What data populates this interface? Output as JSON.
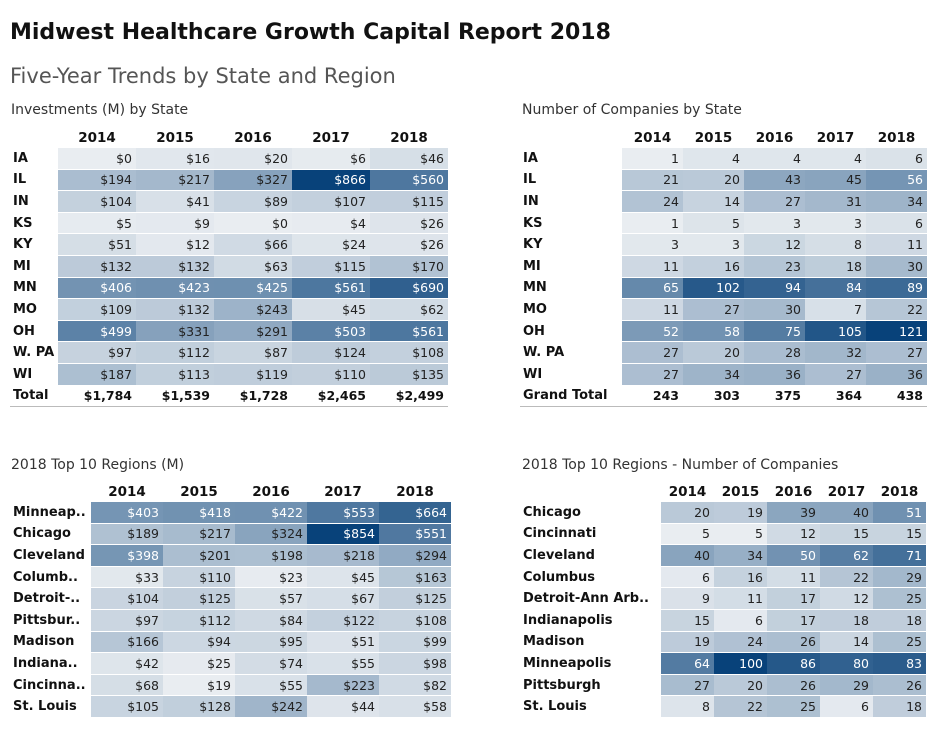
{
  "header": {
    "title": "Midwest Healthcare Growth Capital Report 2018",
    "subtitle": "Five-Year Trends by State and Region"
  },
  "colors": {
    "low": "#e9edf1",
    "high": "#08427a",
    "light_text": "#ffffff",
    "dark_text": "#222222"
  },
  "chart_data": [
    {
      "type": "heatmap",
      "id": "inv-state",
      "title": "Investments (M) by State",
      "value_prefix": "$",
      "columns": [
        "2014",
        "2015",
        "2016",
        "2017",
        "2018"
      ],
      "rows": [
        {
          "label": "IA",
          "values": [
            0,
            16,
            20,
            6,
            46
          ]
        },
        {
          "label": "IL",
          "values": [
            194,
            217,
            327,
            866,
            560
          ]
        },
        {
          "label": "IN",
          "values": [
            104,
            41,
            89,
            107,
            115
          ]
        },
        {
          "label": "KS",
          "values": [
            5,
            9,
            0,
            4,
            26
          ]
        },
        {
          "label": "KY",
          "values": [
            51,
            12,
            66,
            24,
            26
          ]
        },
        {
          "label": "MI",
          "values": [
            132,
            132,
            63,
            115,
            170
          ]
        },
        {
          "label": "MN",
          "values": [
            406,
            423,
            425,
            561,
            690
          ]
        },
        {
          "label": "MO",
          "values": [
            109,
            132,
            243,
            45,
            62
          ]
        },
        {
          "label": "OH",
          "values": [
            499,
            331,
            291,
            503,
            561
          ]
        },
        {
          "label": "W. PA",
          "values": [
            97,
            112,
            87,
            124,
            108
          ]
        },
        {
          "label": "WI",
          "values": [
            187,
            113,
            119,
            110,
            135
          ]
        }
      ],
      "total": {
        "label": "Total",
        "values": [
          "$1,784",
          "$1,539",
          "$1,728",
          "$2,465",
          "$2,499"
        ]
      }
    },
    {
      "type": "heatmap",
      "id": "cos-state",
      "title": "Number of Companies by State",
      "value_prefix": "",
      "columns": [
        "2014",
        "2015",
        "2016",
        "2017",
        "2018"
      ],
      "rows": [
        {
          "label": "IA",
          "values": [
            1,
            4,
            4,
            4,
            6
          ]
        },
        {
          "label": "IL",
          "values": [
            21,
            20,
            43,
            45,
            56
          ]
        },
        {
          "label": "IN",
          "values": [
            24,
            14,
            27,
            31,
            34
          ]
        },
        {
          "label": "KS",
          "values": [
            1,
            5,
            3,
            3,
            6
          ]
        },
        {
          "label": "KY",
          "values": [
            3,
            3,
            12,
            8,
            11
          ]
        },
        {
          "label": "MI",
          "values": [
            11,
            16,
            23,
            18,
            30
          ]
        },
        {
          "label": "MN",
          "values": [
            65,
            102,
            94,
            84,
            89
          ]
        },
        {
          "label": "MO",
          "values": [
            11,
            27,
            30,
            7,
            22
          ]
        },
        {
          "label": "OH",
          "values": [
            52,
            58,
            75,
            105,
            121
          ]
        },
        {
          "label": "W. PA",
          "values": [
            27,
            20,
            28,
            32,
            27
          ]
        },
        {
          "label": "WI",
          "values": [
            27,
            34,
            36,
            27,
            36
          ]
        }
      ],
      "total": {
        "label": "Grand Total",
        "values": [
          "243",
          "303",
          "375",
          "364",
          "438"
        ]
      }
    },
    {
      "type": "heatmap",
      "id": "inv-region",
      "title": "2018 Top 10 Regions (M)",
      "value_prefix": "$",
      "columns": [
        "2014",
        "2015",
        "2016",
        "2017",
        "2018"
      ],
      "rows": [
        {
          "label": "Minneap..",
          "values": [
            403,
            418,
            422,
            553,
            664
          ]
        },
        {
          "label": "Chicago",
          "values": [
            189,
            217,
            324,
            854,
            551
          ]
        },
        {
          "label": "Cleveland",
          "values": [
            398,
            201,
            198,
            218,
            294
          ]
        },
        {
          "label": "Columb..",
          "values": [
            33,
            110,
            23,
            45,
            163
          ]
        },
        {
          "label": "Detroit-..",
          "values": [
            104,
            125,
            57,
            67,
            125
          ]
        },
        {
          "label": "Pittsbur..",
          "values": [
            97,
            112,
            84,
            122,
            108
          ]
        },
        {
          "label": "Madison",
          "values": [
            166,
            94,
            95,
            51,
            99
          ]
        },
        {
          "label": "Indiana..",
          "values": [
            42,
            25,
            74,
            55,
            98
          ]
        },
        {
          "label": "Cincinna..",
          "values": [
            68,
            19,
            55,
            223,
            82
          ]
        },
        {
          "label": "St. Louis",
          "values": [
            105,
            128,
            242,
            44,
            58
          ]
        }
      ]
    },
    {
      "type": "heatmap",
      "id": "cos-region",
      "title": "2018 Top 10 Regions - Number of Companies",
      "value_prefix": "",
      "columns": [
        "2014",
        "2015",
        "2016",
        "2017",
        "2018"
      ],
      "rows": [
        {
          "label": "Chicago",
          "values": [
            20,
            19,
            39,
            40,
            51
          ]
        },
        {
          "label": "Cincinnati",
          "values": [
            5,
            5,
            12,
            15,
            15
          ]
        },
        {
          "label": "Cleveland",
          "values": [
            40,
            34,
            50,
            62,
            71
          ]
        },
        {
          "label": "Columbus",
          "values": [
            6,
            16,
            11,
            22,
            29
          ]
        },
        {
          "label": "Detroit-Ann Arb..",
          "values": [
            9,
            11,
            17,
            12,
            25
          ]
        },
        {
          "label": "Indianapolis",
          "values": [
            15,
            6,
            17,
            18,
            18
          ]
        },
        {
          "label": "Madison",
          "values": [
            19,
            24,
            26,
            14,
            25
          ]
        },
        {
          "label": "Minneapolis",
          "values": [
            64,
            100,
            86,
            80,
            83
          ]
        },
        {
          "label": "Pittsburgh",
          "values": [
            27,
            20,
            26,
            29,
            26
          ]
        },
        {
          "label": "St. Louis",
          "values": [
            8,
            22,
            25,
            6,
            18
          ]
        }
      ]
    }
  ]
}
